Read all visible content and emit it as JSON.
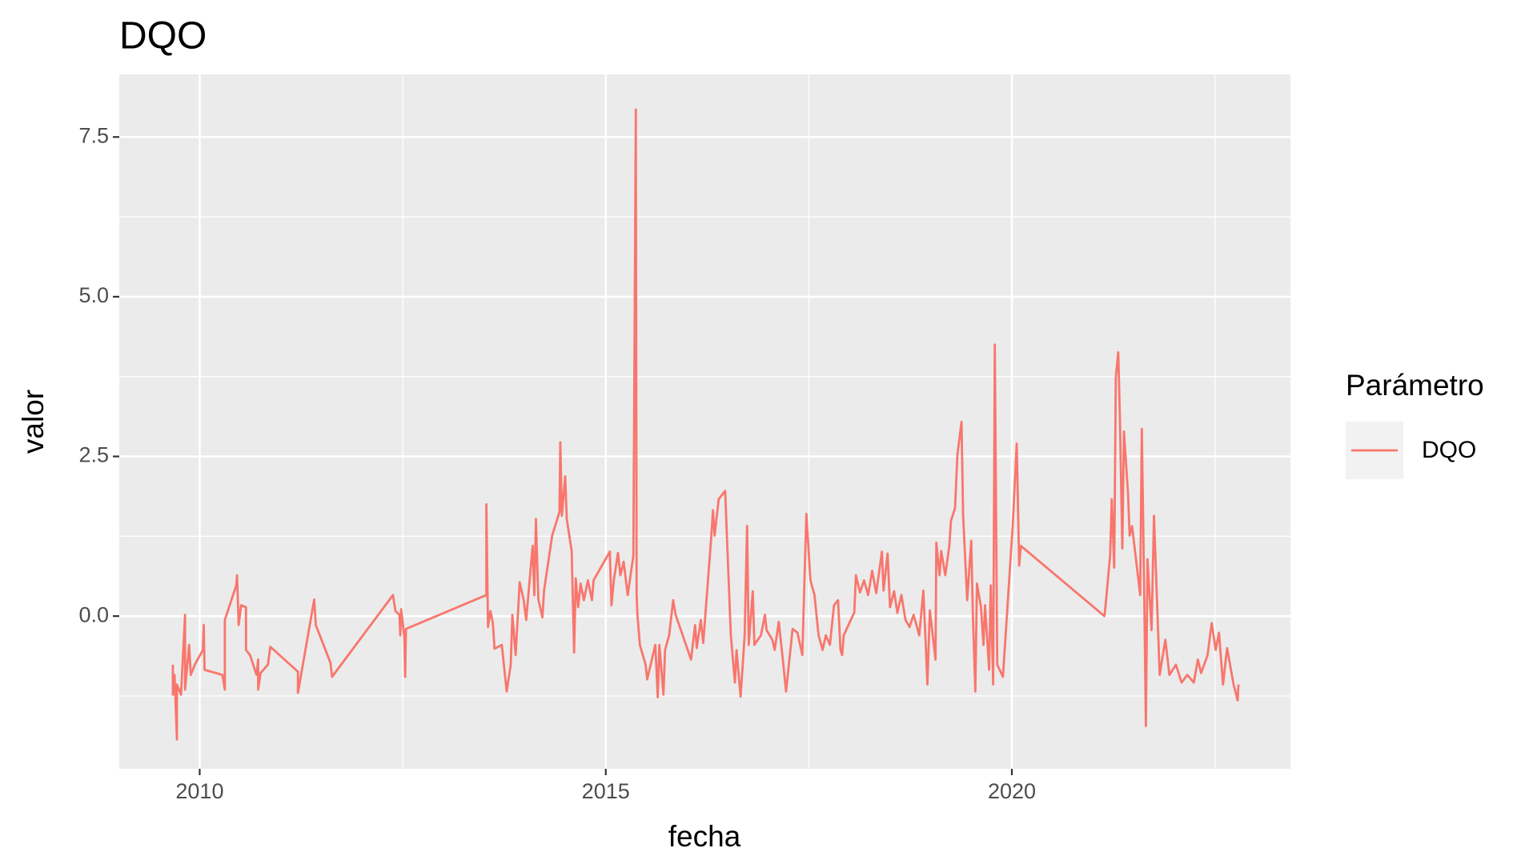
{
  "chart_data": {
    "type": "line",
    "title": "DQO",
    "xlabel": "fecha",
    "ylabel": "valor",
    "legend_title": "Parámetro",
    "legend_position": "right",
    "grid": true,
    "xlim": [
      2009.01,
      2023.43
    ],
    "ylim": [
      -2.39,
      8.48
    ],
    "xticks": [
      2010,
      2015,
      2020
    ],
    "minor_xticks": [
      2012.5,
      2017.5,
      2022.5
    ],
    "yticks": [
      {
        "value": 0,
        "label": "0.0"
      },
      {
        "value": 2.5,
        "label": "2.5"
      },
      {
        "value": 5,
        "label": "5.0"
      },
      {
        "value": 7.5,
        "label": "7.5"
      }
    ],
    "minor_yticks": [
      -1.25,
      1.25,
      3.75,
      6.25
    ],
    "x": [
      2009.67,
      2009.67,
      2009.69,
      2009.72,
      2009.72,
      2009.77,
      2009.82,
      2009.82,
      2009.87,
      2009.89,
      2009.94,
      2010.04,
      2010.05,
      2010.06,
      2010.28,
      2010.31,
      2010.31,
      2010.45,
      2010.46,
      2010.48,
      2010.51,
      2010.57,
      2010.57,
      2010.62,
      2010.7,
      2010.72,
      2010.72,
      2010.75,
      2010.84,
      2010.87,
      2011.21,
      2011.21,
      2011.41,
      2011.43,
      2011.61,
      2011.63,
      2012.38,
      2012.41,
      2012.46,
      2012.47,
      2012.48,
      2012.52,
      2012.53,
      2012.54,
      2013.53,
      2013.53,
      2013.55,
      2013.58,
      2013.61,
      2013.63,
      2013.72,
      2013.78,
      2013.83,
      2013.85,
      2013.89,
      2013.94,
      2013.99,
      2014.02,
      2014.07,
      2014.1,
      2014.12,
      2014.14,
      2014.17,
      2014.22,
      2014.24,
      2014.34,
      2014.43,
      2014.44,
      2014.46,
      2014.5,
      2014.52,
      2014.58,
      2014.61,
      2014.63,
      2014.66,
      2014.69,
      2014.73,
      2014.78,
      2014.83,
      2014.85,
      2015.05,
      2015.07,
      2015.1,
      2015.15,
      2015.18,
      2015.22,
      2015.27,
      2015.34,
      2015.37,
      2015.38,
      2015.39,
      2015.42,
      2015.49,
      2015.51,
      2015.61,
      2015.64,
      2015.66,
      2015.71,
      2015.73,
      2015.78,
      2015.83,
      2015.86,
      2016.05,
      2016.1,
      2016.12,
      2016.17,
      2016.2,
      2016.3,
      2016.32,
      2016.34,
      2016.39,
      2016.47,
      2016.49,
      2016.54,
      2016.59,
      2016.61,
      2016.66,
      2016.71,
      2016.74,
      2016.76,
      2016.81,
      2016.83,
      2016.91,
      2016.96,
      2016.98,
      2017.05,
      2017.08,
      2017.13,
      2017.18,
      2017.22,
      2017.3,
      2017.36,
      2017.42,
      2017.47,
      2017.52,
      2017.57,
      2017.62,
      2017.67,
      2017.71,
      2017.76,
      2017.81,
      2017.86,
      2017.89,
      2017.91,
      2017.93,
      2018.06,
      2018.08,
      2018.13,
      2018.18,
      2018.23,
      2018.28,
      2018.33,
      2018.4,
      2018.42,
      2018.47,
      2018.5,
      2018.55,
      2018.59,
      2018.64,
      2018.69,
      2018.74,
      2018.79,
      2018.86,
      2018.91,
      2018.94,
      2018.96,
      2018.99,
      2019.06,
      2019.07,
      2019.11,
      2019.13,
      2019.18,
      2019.23,
      2019.25,
      2019.3,
      2019.33,
      2019.38,
      2019.4,
      2019.45,
      2019.5,
      2019.52,
      2019.55,
      2019.57,
      2019.62,
      2019.65,
      2019.67,
      2019.72,
      2019.74,
      2019.77,
      2019.79,
      2019.82,
      2019.89,
      2020.01,
      2020.06,
      2020.09,
      2020.11,
      2021.14,
      2021.16,
      2021.21,
      2021.23,
      2021.26,
      2021.28,
      2021.31,
      2021.33,
      2021.36,
      2021.38,
      2021.43,
      2021.45,
      2021.48,
      2021.58,
      2021.6,
      2021.63,
      2021.65,
      2021.67,
      2021.72,
      2021.75,
      2021.82,
      2021.89,
      2021.94,
      2022.02,
      2022.09,
      2022.16,
      2022.24,
      2022.29,
      2022.33,
      2022.41,
      2022.46,
      2022.51,
      2022.55,
      2022.6,
      2022.65,
      2022.73,
      2022.78,
      2022.79
    ],
    "series": [
      {
        "name": "DQO",
        "color": "#f8766d",
        "values": [
          -0.76,
          -1.23,
          -0.92,
          -1.93,
          -1.07,
          -1.23,
          0.02,
          -1.15,
          -0.45,
          -0.92,
          -0.76,
          -0.53,
          -0.14,
          -0.84,
          -0.92,
          -1.15,
          -0.06,
          0.48,
          0.64,
          -0.14,
          0.17,
          0.14,
          -0.53,
          -0.61,
          -0.92,
          -0.68,
          -1.15,
          -0.89,
          -0.76,
          -0.48,
          -0.87,
          -1.2,
          0.26,
          -0.14,
          -0.73,
          -0.95,
          0.33,
          0.08,
          0.02,
          -0.3,
          0.11,
          -0.33,
          -0.95,
          -0.2,
          0.33,
          1.75,
          -0.17,
          0.08,
          -0.11,
          -0.51,
          -0.45,
          -1.18,
          -0.76,
          0.02,
          -0.61,
          0.53,
          0.25,
          -0.06,
          0.67,
          1.1,
          0.33,
          1.52,
          0.26,
          -0.02,
          0.4,
          1.26,
          1.63,
          2.72,
          1.57,
          2.19,
          1.52,
          1.02,
          -0.57,
          0.59,
          0.14,
          0.51,
          0.25,
          0.56,
          0.25,
          0.56,
          1.01,
          0.17,
          0.57,
          0.99,
          0.64,
          0.85,
          0.33,
          0.95,
          7.93,
          0.33,
          0.02,
          -0.45,
          -0.76,
          -0.99,
          -0.45,
          -1.27,
          -0.45,
          -1.23,
          -0.53,
          -0.3,
          0.25,
          0.02,
          -0.68,
          -0.14,
          -0.5,
          -0.06,
          -0.42,
          1.26,
          1.66,
          1.26,
          1.83,
          1.96,
          1.3,
          -0.3,
          -1.04,
          -0.53,
          -1.26,
          -0.3,
          1.41,
          -0.45,
          0.39,
          -0.45,
          -0.3,
          0.02,
          -0.22,
          -0.37,
          -0.53,
          -0.09,
          -0.68,
          -1.18,
          -0.2,
          -0.26,
          -0.61,
          1.6,
          0.56,
          0.33,
          -0.3,
          -0.53,
          -0.3,
          -0.45,
          0.17,
          0.25,
          -0.53,
          -0.61,
          -0.3,
          0.06,
          0.64,
          0.37,
          0.56,
          0.33,
          0.71,
          0.36,
          1.01,
          0.4,
          0.98,
          0.14,
          0.39,
          0.05,
          0.33,
          -0.06,
          -0.17,
          0.02,
          -0.3,
          0.4,
          -0.45,
          -1.07,
          0.09,
          -0.68,
          1.15,
          0.64,
          1.02,
          0.64,
          1.1,
          1.49,
          1.69,
          2.53,
          3.04,
          1.57,
          0.25,
          1.18,
          0.02,
          -1.18,
          0.51,
          0.14,
          -0.45,
          0.17,
          -0.84,
          0.48,
          -1.07,
          4.25,
          -0.76,
          -0.95,
          1.41,
          2.7,
          0.79,
          1.1,
          0.0,
          0.25,
          0.95,
          1.83,
          0.76,
          3.74,
          4.13,
          3.12,
          1.06,
          2.89,
          1.93,
          1.26,
          1.41,
          0.33,
          2.93,
          0.33,
          -1.72,
          0.89,
          -0.22,
          1.57,
          -0.92,
          -0.37,
          -0.92,
          -0.76,
          -1.04,
          -0.92,
          -1.04,
          -0.68,
          -0.89,
          -0.61,
          -0.11,
          -0.53,
          -0.26,
          -1.07,
          -0.5,
          -1.07,
          -1.32,
          -1.07
        ]
      }
    ]
  }
}
